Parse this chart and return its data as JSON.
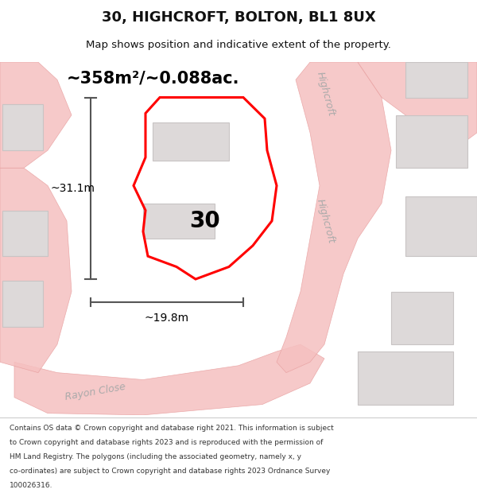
{
  "title": "30, HIGHCROFT, BOLTON, BL1 8UX",
  "subtitle": "Map shows position and indicative extent of the property.",
  "area_text": "~358m²/~0.088ac.",
  "dim_vertical": "~31.1m",
  "dim_horizontal": "~19.8m",
  "label_number": "30",
  "footer_lines": [
    "Contains OS data © Crown copyright and database right 2021. This information is subject",
    "to Crown copyright and database rights 2023 and is reproduced with the permission of",
    "HM Land Registry. The polygons (including the associated geometry, namely x, y",
    "co-ordinates) are subject to Crown copyright and database rights 2023 Ordnance Survey",
    "100026316."
  ],
  "road_color_light": "#f5c0c0",
  "road_color_outline": "#e8a0a0",
  "building_color": "#e0dede",
  "building_outline": "#c8c4c4",
  "plot_color": "#ff0000",
  "dim_color": "#555555",
  "title_color": "#111111",
  "road_label_color": "#aaaaaa"
}
